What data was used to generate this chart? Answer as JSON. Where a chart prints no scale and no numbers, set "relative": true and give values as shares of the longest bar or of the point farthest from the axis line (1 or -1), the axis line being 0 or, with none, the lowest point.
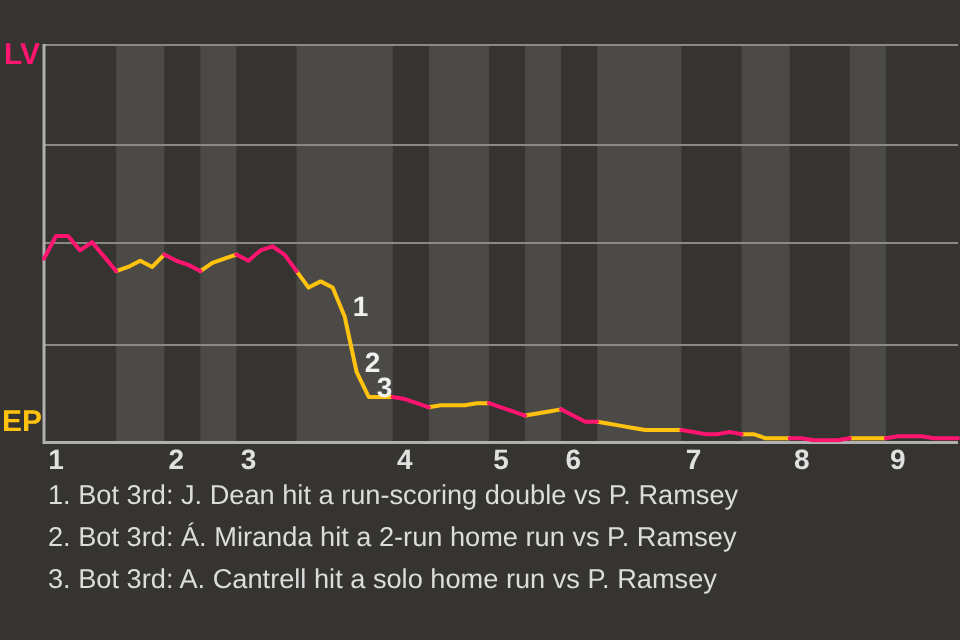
{
  "chart_data": {
    "type": "line",
    "relative": true,
    "categories": [
      null,
      "1",
      null,
      null,
      null,
      null,
      null,
      null,
      null,
      null,
      null,
      "2",
      null,
      null,
      null,
      null,
      null,
      "3",
      null,
      null,
      null,
      null,
      null,
      null,
      null,
      null,
      null,
      null,
      null,
      null,
      "4",
      null,
      null,
      null,
      null,
      null,
      null,
      null,
      "5",
      null,
      null,
      null,
      null,
      null,
      "6",
      null,
      null,
      null,
      null,
      null,
      null,
      null,
      null,
      null,
      "7",
      null,
      null,
      null,
      null,
      null,
      null,
      null,
      null,
      "8",
      null,
      null,
      null,
      null,
      null,
      null,
      null,
      "9",
      null,
      null,
      null,
      null,
      null
    ],
    "ref_lines": [
      {
        "axis": "y",
        "value": 0.48,
        "color": "#8a8986"
      },
      {
        "axis": "y",
        "value": 0.97,
        "color": "#8a8986"
      },
      {
        "axis": "y",
        "value": 1.45,
        "color": "#8a8986"
      },
      {
        "axis": "y",
        "value": 1.93,
        "color": "#8a8986"
      }
    ],
    "series": [
      {
        "name": "LV",
        "color": "#ff1470",
        "values": [
          0.89,
          1,
          1,
          0.93,
          0.97,
          0.9,
          0.83,
          null,
          null,
          null,
          0.91,
          0.88,
          0.86,
          0.83,
          null,
          null,
          0.91,
          0.88,
          0.93,
          0.95,
          0.91,
          0.83,
          null,
          null,
          null,
          null,
          null,
          null,
          null,
          0.22,
          0.21,
          0.19,
          0.17,
          null,
          null,
          null,
          null,
          0.19,
          0.17,
          0.15,
          0.13,
          null,
          null,
          0.16,
          0.13,
          0.1,
          0.1,
          null,
          null,
          null,
          null,
          null,
          null,
          0.06,
          0.05,
          0.04,
          0.04,
          0.05,
          0.04,
          null,
          null,
          null,
          0.02,
          0.02,
          0.01,
          0.01,
          0.01,
          0.02,
          null,
          null,
          0.02,
          0.03,
          0.03,
          0.03,
          0.02,
          0.02,
          0.02
        ]
      },
      {
        "name": "EP",
        "color": "#ffc20e",
        "values": [
          null,
          null,
          null,
          null,
          null,
          null,
          0.83,
          0.85,
          0.88,
          0.85,
          0.91,
          null,
          null,
          0.83,
          0.87,
          0.89,
          0.91,
          null,
          null,
          null,
          null,
          0.83,
          0.75,
          0.78,
          0.75,
          0.61,
          0.34,
          0.22,
          0.22,
          0.22,
          null,
          null,
          0.17,
          0.18,
          0.18,
          0.18,
          0.19,
          0.19,
          null,
          null,
          0.13,
          0.14,
          0.15,
          0.16,
          null,
          null,
          0.1,
          0.09,
          0.08,
          0.07,
          0.06,
          0.06,
          0.06,
          0.06,
          null,
          null,
          null,
          null,
          0.04,
          0.04,
          0.02,
          0.02,
          0.02,
          null,
          null,
          null,
          null,
          0.02,
          0.02,
          0.02,
          0.02,
          null,
          null,
          null,
          null,
          null,
          null
        ]
      }
    ],
    "annotations": [
      "1",
      "2",
      "3",
      "1. Bot 3rd: J. Dean hit a run-scoring double vs P. Ramsey",
      "2. Bot 3rd: Á. Miranda hit a 2-run home run vs P. Ramsey",
      "3. Bot 3rd: A. Cantrell hit a solo home run vs P. Ramsey"
    ]
  }
}
